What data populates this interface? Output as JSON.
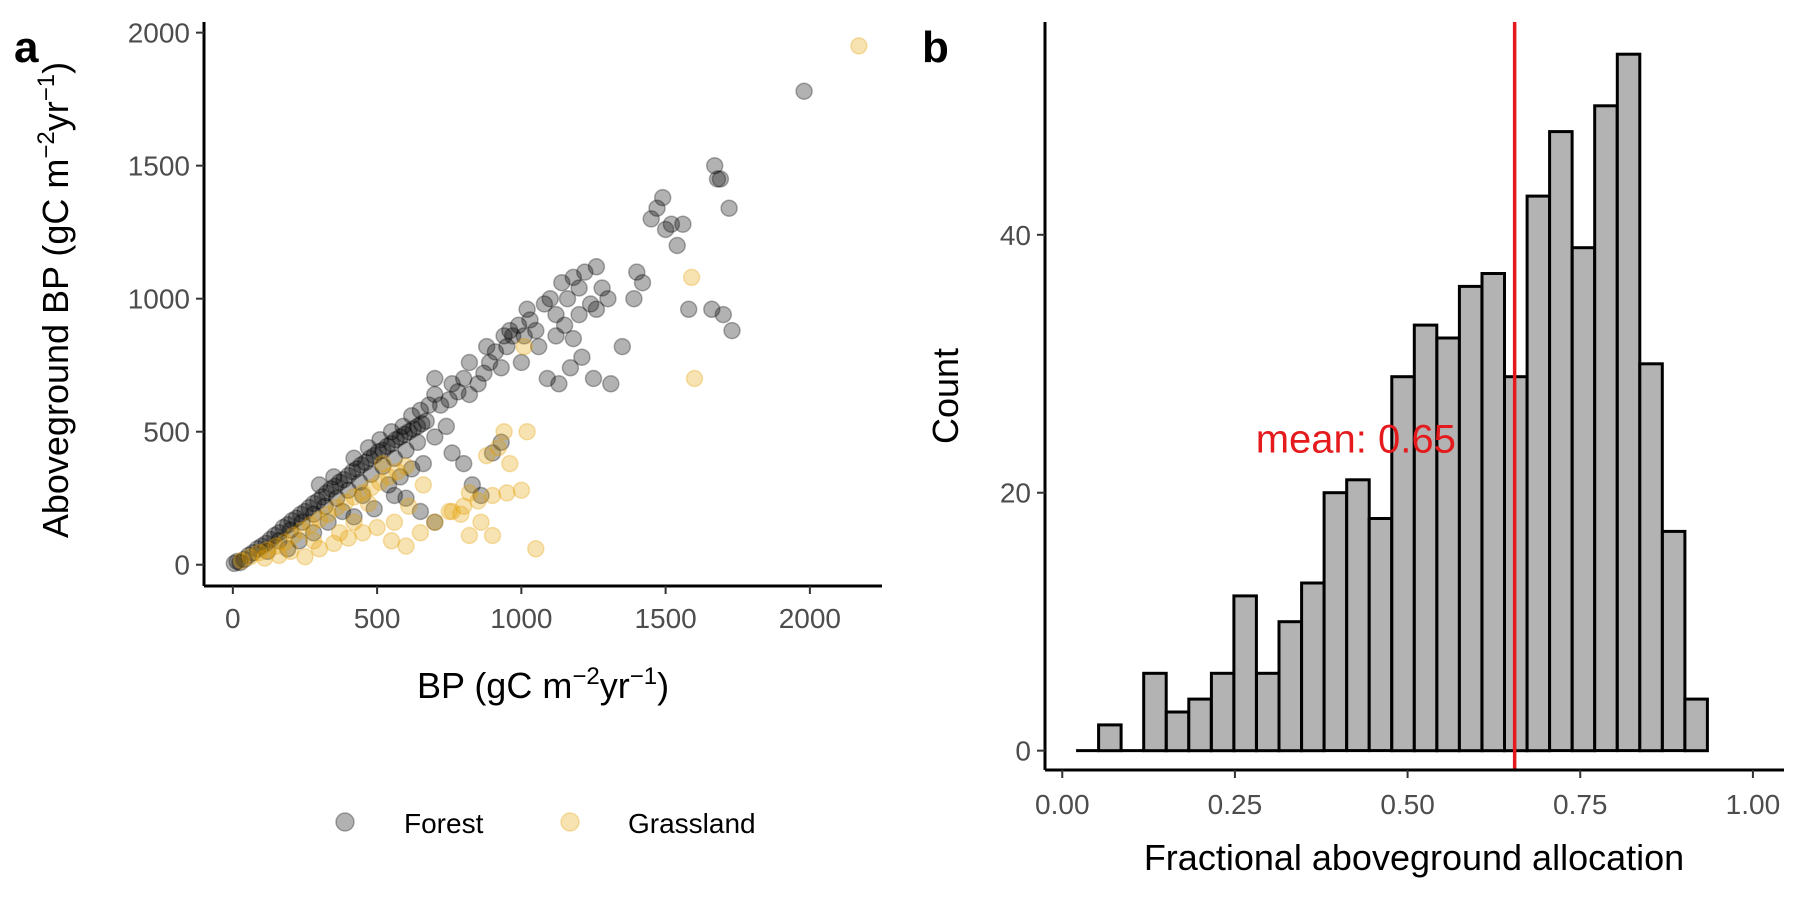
{
  "panel_labels": {
    "a": "a",
    "b": "b"
  },
  "colors": {
    "forest": "#000000",
    "grassland": "#E69F00",
    "bar_fill": "#b3b3b3",
    "mean_line": "#e41a1c"
  },
  "chart_data": [
    {
      "id": "a",
      "type": "scatter",
      "xlabel": "BP (gC m⁻²yr⁻¹)",
      "ylabel": "Aboveground BP (gC m⁻²yr⁻¹)",
      "xlabel_parts": {
        "base": "BP (gC m",
        "exp1": "−2",
        "mid": "yr",
        "exp2": "−1",
        "end": ")"
      },
      "ylabel_parts": {
        "base": "Aboveground BP (gC m",
        "exp1": "−2",
        "mid": "yr",
        "exp2": "−1",
        "end": ")"
      },
      "xlim": [
        -100,
        2250
      ],
      "ylim": [
        -80,
        2040
      ],
      "xticks": [
        0,
        500,
        1000,
        1500,
        2000
      ],
      "yticks": [
        0,
        500,
        1000,
        1500,
        2000
      ],
      "legend": {
        "position": "bottom",
        "entries": [
          "Forest",
          "Grassland"
        ]
      },
      "series": [
        {
          "name": "Forest",
          "points": [
            [
              5,
              5
            ],
            [
              15,
              12
            ],
            [
              25,
              8
            ],
            [
              40,
              20
            ],
            [
              55,
              35
            ],
            [
              70,
              45
            ],
            [
              85,
              60
            ],
            [
              100,
              70
            ],
            [
              115,
              80
            ],
            [
              130,
              95
            ],
            [
              145,
              110
            ],
            [
              160,
              120
            ],
            [
              175,
              140
            ],
            [
              190,
              150
            ],
            [
              205,
              165
            ],
            [
              220,
              175
            ],
            [
              235,
              190
            ],
            [
              250,
              200
            ],
            [
              265,
              215
            ],
            [
              280,
              230
            ],
            [
              295,
              240
            ],
            [
              310,
              255
            ],
            [
              325,
              270
            ],
            [
              340,
              285
            ],
            [
              355,
              295
            ],
            [
              370,
              310
            ],
            [
              385,
              320
            ],
            [
              400,
              335
            ],
            [
              415,
              350
            ],
            [
              430,
              360
            ],
            [
              445,
              375
            ],
            [
              460,
              385
            ],
            [
              475,
              400
            ],
            [
              490,
              410
            ],
            [
              505,
              425
            ],
            [
              520,
              430
            ],
            [
              535,
              445
            ],
            [
              550,
              455
            ],
            [
              565,
              470
            ],
            [
              580,
              480
            ],
            [
              595,
              490
            ],
            [
              610,
              500
            ],
            [
              625,
              510
            ],
            [
              640,
              520
            ],
            [
              655,
              530
            ],
            [
              670,
              540
            ],
            [
              120,
              50
            ],
            [
              160,
              90
            ],
            [
              200,
              130
            ],
            [
              240,
              160
            ],
            [
              280,
              190
            ],
            [
              320,
              220
            ],
            [
              360,
              250
            ],
            [
              400,
              280
            ],
            [
              440,
              310
            ],
            [
              480,
              340
            ],
            [
              520,
              370
            ],
            [
              560,
              400
            ],
            [
              600,
              430
            ],
            [
              640,
              460
            ],
            [
              300,
              300
            ],
            [
              350,
              330
            ],
            [
              420,
              400
            ],
            [
              470,
              440
            ],
            [
              510,
              470
            ],
            [
              550,
              500
            ],
            [
              590,
              520
            ],
            [
              620,
              560
            ],
            [
              650,
              580
            ],
            [
              680,
              600
            ],
            [
              700,
              640
            ],
            [
              720,
              600
            ],
            [
              750,
              620
            ],
            [
              780,
              650
            ],
            [
              800,
              700
            ],
            [
              820,
              640
            ],
            [
              850,
              680
            ],
            [
              870,
              720
            ],
            [
              890,
              760
            ],
            [
              910,
              800
            ],
            [
              930,
              740
            ],
            [
              950,
              820
            ],
            [
              970,
              860
            ],
            [
              990,
              900
            ],
            [
              1010,
              860
            ],
            [
              1030,
              920
            ],
            [
              1050,
              880
            ],
            [
              1080,
              980
            ],
            [
              1100,
              1000
            ],
            [
              1120,
              940
            ],
            [
              1140,
              1060
            ],
            [
              1160,
              1000
            ],
            [
              1180,
              1080
            ],
            [
              1200,
              1040
            ],
            [
              1220,
              1100
            ],
            [
              1240,
              980
            ],
            [
              1260,
              1120
            ],
            [
              1280,
              1040
            ],
            [
              1300,
              1000
            ],
            [
              1150,
              900
            ],
            [
              1180,
              850
            ],
            [
              1210,
              780
            ],
            [
              1250,
              700
            ],
            [
              1310,
              680
            ],
            [
              1350,
              820
            ],
            [
              1390,
              1000
            ],
            [
              1400,
              1100
            ],
            [
              1420,
              1060
            ],
            [
              1450,
              1300
            ],
            [
              1470,
              1340
            ],
            [
              1490,
              1380
            ],
            [
              1500,
              1260
            ],
            [
              1520,
              1280
            ],
            [
              1540,
              1200
            ],
            [
              1560,
              1280
            ],
            [
              1580,
              960
            ],
            [
              1660,
              960
            ],
            [
              1680,
              1450
            ],
            [
              1700,
              940
            ],
            [
              1720,
              1340
            ],
            [
              1690,
              1450
            ],
            [
              1670,
              1500
            ],
            [
              1730,
              880
            ],
            [
              1980,
              1780
            ],
            [
              700,
              480
            ],
            [
              740,
              520
            ],
            [
              760,
              420
            ],
            [
              800,
              380
            ],
            [
              830,
              300
            ],
            [
              860,
              260
            ],
            [
              900,
              420
            ],
            [
              930,
              460
            ],
            [
              540,
              300
            ],
            [
              600,
              250
            ],
            [
              650,
              200
            ],
            [
              700,
              160
            ],
            [
              620,
              360
            ],
            [
              660,
              380
            ],
            [
              580,
              330
            ],
            [
              450,
              260
            ],
            [
              380,
              200
            ],
            [
              330,
              160
            ],
            [
              280,
              120
            ],
            [
              230,
              90
            ],
            [
              190,
              60
            ],
            [
              420,
              180
            ],
            [
              490,
              210
            ],
            [
              560,
              260
            ],
            [
              700,
              700
            ],
            [
              760,
              680
            ],
            [
              820,
              760
            ],
            [
              880,
              820
            ],
            [
              940,
              860
            ],
            [
              1000,
              760
            ],
            [
              1060,
              820
            ],
            [
              1120,
              860
            ],
            [
              1200,
              940
            ],
            [
              1260,
              960
            ],
            [
              1090,
              700
            ],
            [
              1130,
              680
            ],
            [
              1170,
              740
            ],
            [
              960,
              880
            ],
            [
              1020,
              960
            ]
          ]
        },
        {
          "name": "Grassland",
          "points": [
            [
              30,
              15
            ],
            [
              60,
              30
            ],
            [
              90,
              45
            ],
            [
              120,
              55
            ],
            [
              150,
              70
            ],
            [
              180,
              85
            ],
            [
              210,
              110
            ],
            [
              240,
              130
            ],
            [
              270,
              150
            ],
            [
              300,
              170
            ],
            [
              330,
              190
            ],
            [
              360,
              215
            ],
            [
              390,
              235
            ],
            [
              420,
              255
            ],
            [
              450,
              270
            ],
            [
              480,
              290
            ],
            [
              510,
              310
            ],
            [
              540,
              330
            ],
            [
              570,
              350
            ],
            [
              600,
              370
            ],
            [
              250,
              30
            ],
            [
              300,
              60
            ],
            [
              350,
              80
            ],
            [
              400,
              100
            ],
            [
              450,
              120
            ],
            [
              500,
              140
            ],
            [
              550,
              90
            ],
            [
              600,
              70
            ],
            [
              650,
              120
            ],
            [
              700,
              160
            ],
            [
              750,
              200
            ],
            [
              800,
              220
            ],
            [
              850,
              240
            ],
            [
              900,
              260
            ],
            [
              950,
              270
            ],
            [
              1000,
              280
            ],
            [
              1050,
              60
            ],
            [
              1600,
              700
            ],
            [
              1590,
              1080
            ],
            [
              2170,
              1950
            ],
            [
              760,
              200
            ],
            [
              790,
              190
            ],
            [
              820,
              270
            ],
            [
              880,
              410
            ],
            [
              920,
              440
            ],
            [
              960,
              380
            ],
            [
              900,
              110
            ],
            [
              860,
              160
            ],
            [
              820,
              110
            ],
            [
              560,
              160
            ],
            [
              610,
              220
            ],
            [
              660,
              300
            ],
            [
              520,
              380
            ],
            [
              470,
              230
            ],
            [
              420,
              160
            ],
            [
              370,
              120
            ],
            [
              280,
              90
            ],
            [
              200,
              50
            ],
            [
              160,
              35
            ],
            [
              110,
              25
            ],
            [
              1010,
              820
            ],
            [
              940,
              500
            ],
            [
              1020,
              500
            ]
          ]
        }
      ]
    },
    {
      "id": "b",
      "type": "bar",
      "subtype": "histogram",
      "xlabel": "Fractional aboveground allocation",
      "ylabel": "Count",
      "xlim": [
        -0.025,
        1.045
      ],
      "ylim": [
        -1.5,
        56.5
      ],
      "xticks": [
        "0.00",
        "0.25",
        "0.50",
        "0.75",
        "1.00"
      ],
      "yticks": [
        0,
        20,
        40
      ],
      "bin_width": 0.03265,
      "bin_start": 0.02,
      "counts": [
        0,
        2,
        0,
        6,
        3,
        4,
        6,
        12,
        6,
        10,
        13,
        20,
        21,
        18,
        29,
        33,
        32,
        36,
        37,
        29,
        43,
        48,
        39,
        50,
        54,
        30,
        17,
        4
      ],
      "mean": 0.655,
      "annotation": "mean: 0.65"
    }
  ]
}
